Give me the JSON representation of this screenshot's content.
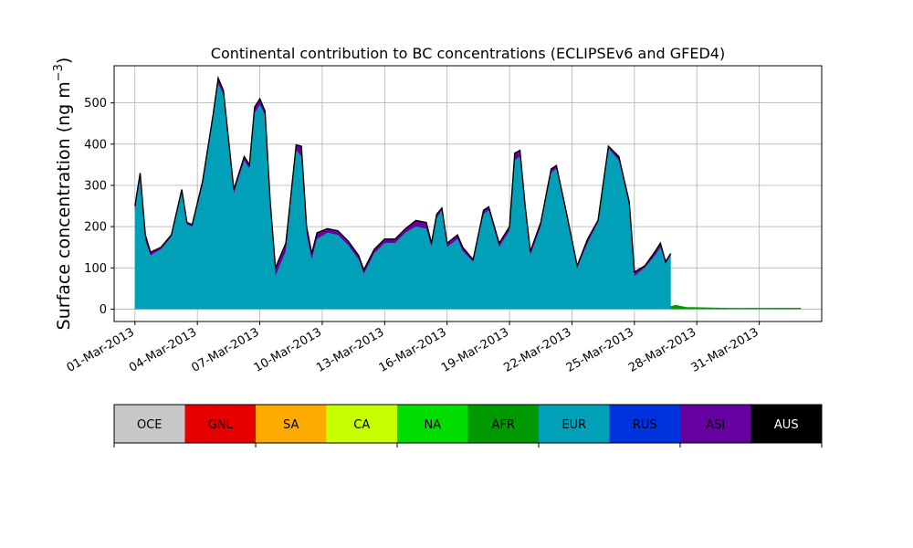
{
  "chart_data": {
    "type": "area",
    "title": "Continental contribution to BC concentrations (ECLIPSEv6 and GFED4)",
    "ylabel": "Surface concentration (ng m",
    "ylabel_exp": "−3",
    "ylabel_close": ")",
    "xlabel": "",
    "xlim": [
      "2013-02-28",
      "2013-04-03"
    ],
    "ylim": [
      -30,
      590
    ],
    "grid": true,
    "x_ticks": [
      "01-Mar-2013",
      "04-Mar-2013",
      "07-Mar-2013",
      "10-Mar-2013",
      "13-Mar-2013",
      "16-Mar-2013",
      "19-Mar-2013",
      "22-Mar-2013",
      "25-Mar-2013",
      "28-Mar-2013",
      "31-Mar-2013"
    ],
    "x_tick_dates": [
      "2013-03-01",
      "2013-03-04",
      "2013-03-07",
      "2013-03-10",
      "2013-03-13",
      "2013-03-16",
      "2013-03-19",
      "2013-03-22",
      "2013-03-25",
      "2013-03-28",
      "2013-03-31"
    ],
    "y_ticks": [
      0,
      100,
      200,
      300,
      400,
      500
    ],
    "series_order": [
      "OCE",
      "GNL",
      "SA",
      "CA",
      "NA",
      "AFR",
      "EUR",
      "RUS",
      "ASI",
      "AUS"
    ],
    "series": [
      {
        "name": "NA",
        "color": "#00dd00",
        "points": [
          [
            "2013-03-01T00:00",
            2
          ],
          [
            "2013-03-03T00:00",
            3
          ],
          [
            "2013-03-05T00:00",
            5
          ],
          [
            "2013-03-06T00:00",
            6
          ],
          [
            "2013-03-07T12:00",
            2
          ],
          [
            "2013-03-09T00:00",
            5
          ],
          [
            "2013-03-12T00:00",
            3
          ],
          [
            "2013-03-14T00:00",
            2
          ],
          [
            "2013-03-17T00:00",
            2
          ],
          [
            "2013-03-20T00:00",
            1
          ],
          [
            "2013-03-22T00:00",
            2
          ],
          [
            "2013-03-23T12:00",
            8
          ],
          [
            "2013-03-24T06:00",
            18
          ],
          [
            "2013-03-24T18:00",
            10
          ],
          [
            "2013-03-26T00:00",
            4
          ],
          [
            "2013-03-30T00:00",
            2
          ],
          [
            "2013-04-02T00:00",
            3
          ]
        ]
      },
      {
        "name": "AFR",
        "color": "#009a00",
        "points": [
          [
            "2013-03-01T00:00",
            18
          ],
          [
            "2013-03-01T12:00",
            30
          ],
          [
            "2013-03-01T18:00",
            65
          ],
          [
            "2013-03-02T06:00",
            55
          ],
          [
            "2013-03-02T18:00",
            57
          ],
          [
            "2013-03-03T06:00",
            53
          ],
          [
            "2013-03-03T18:00",
            60
          ],
          [
            "2013-03-04T00:00",
            52
          ],
          [
            "2013-03-04T12:00",
            40
          ],
          [
            "2013-03-05T00:00",
            23
          ],
          [
            "2013-03-05T12:00",
            24
          ],
          [
            "2013-03-06T00:00",
            18
          ],
          [
            "2013-03-06T12:00",
            30
          ],
          [
            "2013-03-07T00:00",
            16
          ],
          [
            "2013-03-07T12:00",
            20
          ],
          [
            "2013-03-08T00:00",
            20
          ],
          [
            "2013-03-08T12:00",
            18
          ],
          [
            "2013-03-09T00:00",
            22
          ],
          [
            "2013-03-09T12:00",
            45
          ],
          [
            "2013-03-09T18:00",
            40
          ],
          [
            "2013-03-10T06:00",
            25
          ],
          [
            "2013-03-10T18:00",
            14
          ],
          [
            "2013-03-11T12:00",
            10
          ],
          [
            "2013-03-12T12:00",
            9
          ],
          [
            "2013-03-13T12:00",
            8
          ],
          [
            "2013-03-14T12:00",
            6
          ],
          [
            "2013-03-15T12:00",
            5
          ],
          [
            "2013-03-16T12:00",
            5
          ],
          [
            "2013-03-17T12:00",
            4
          ],
          [
            "2013-03-18T12:00",
            4
          ],
          [
            "2013-03-19T12:00",
            3
          ],
          [
            "2013-03-20T12:00",
            3
          ],
          [
            "2013-03-21T12:00",
            3
          ],
          [
            "2013-03-22T12:00",
            4
          ],
          [
            "2013-03-23T12:00",
            9
          ],
          [
            "2013-03-24T06:00",
            20
          ],
          [
            "2013-03-24T18:00",
            12
          ],
          [
            "2013-03-25T12:00",
            6
          ],
          [
            "2013-03-26T12:00",
            5
          ],
          [
            "2013-03-27T00:00",
            10
          ],
          [
            "2013-03-27T12:00",
            5
          ],
          [
            "2013-03-28T12:00",
            4
          ],
          [
            "2013-03-29T12:00",
            3
          ],
          [
            "2013-03-30T12:00",
            3
          ],
          [
            "2013-03-31T12:00",
            3
          ],
          [
            "2013-04-01T12:00",
            3
          ],
          [
            "2013-04-02T00:00",
            3
          ]
        ]
      },
      {
        "name": "EUR",
        "color": "#00a0b8",
        "points": [
          [
            "2013-03-01T00:00",
            235
          ],
          [
            "2013-03-01T06:00",
            320
          ],
          [
            "2013-03-01T12:00",
            165
          ],
          [
            "2013-03-01T18:00",
            130
          ],
          [
            "2013-03-02T06:00",
            145
          ],
          [
            "2013-03-02T18:00",
            175
          ],
          [
            "2013-03-03T06:00",
            285
          ],
          [
            "2013-03-03T12:00",
            205
          ],
          [
            "2013-03-03T18:00",
            200
          ],
          [
            "2013-03-04T06:00",
            300
          ],
          [
            "2013-03-04T18:00",
            460
          ],
          [
            "2013-03-05T00:00",
            545
          ],
          [
            "2013-03-05T06:00",
            520
          ],
          [
            "2013-03-05T18:00",
            280
          ],
          [
            "2013-03-06T06:00",
            360
          ],
          [
            "2013-03-06T12:00",
            340
          ],
          [
            "2013-03-06T18:00",
            475
          ],
          [
            "2013-03-07T00:00",
            495
          ],
          [
            "2013-03-07T06:00",
            470
          ],
          [
            "2013-03-07T12:00",
            250
          ],
          [
            "2013-03-07T18:00",
            80
          ],
          [
            "2013-03-08T06:00",
            140
          ],
          [
            "2013-03-08T18:00",
            385
          ],
          [
            "2013-03-09T00:00",
            370
          ],
          [
            "2013-03-09T06:00",
            180
          ],
          [
            "2013-03-09T12:00",
            120
          ],
          [
            "2013-03-09T18:00",
            170
          ],
          [
            "2013-03-10T06:00",
            185
          ],
          [
            "2013-03-10T18:00",
            180
          ],
          [
            "2013-03-11T06:00",
            155
          ],
          [
            "2013-03-11T18:00",
            120
          ],
          [
            "2013-03-12T00:00",
            85
          ],
          [
            "2013-03-12T12:00",
            135
          ],
          [
            "2013-03-13T00:00",
            160
          ],
          [
            "2013-03-13T12:00",
            160
          ],
          [
            "2013-03-14T00:00",
            185
          ],
          [
            "2013-03-14T12:00",
            200
          ],
          [
            "2013-03-15T00:00",
            195
          ],
          [
            "2013-03-15T06:00",
            150
          ],
          [
            "2013-03-15T12:00",
            220
          ],
          [
            "2013-03-15T18:00",
            240
          ],
          [
            "2013-03-16T00:00",
            150
          ],
          [
            "2013-03-16T12:00",
            170
          ],
          [
            "2013-03-16T18:00",
            140
          ],
          [
            "2013-03-17T06:00",
            115
          ],
          [
            "2013-03-17T18:00",
            230
          ],
          [
            "2013-03-18T00:00",
            240
          ],
          [
            "2013-03-18T12:00",
            150
          ],
          [
            "2013-03-19T00:00",
            190
          ],
          [
            "2013-03-19T06:00",
            360
          ],
          [
            "2013-03-19T12:00",
            370
          ],
          [
            "2013-03-19T18:00",
            240
          ],
          [
            "2013-03-20T00:00",
            130
          ],
          [
            "2013-03-20T12:00",
            200
          ],
          [
            "2013-03-21T00:00",
            330
          ],
          [
            "2013-03-21T06:00",
            340
          ],
          [
            "2013-03-21T18:00",
            220
          ],
          [
            "2013-03-22T06:00",
            100
          ],
          [
            "2013-03-22T18:00",
            160
          ],
          [
            "2013-03-23T06:00",
            210
          ],
          [
            "2013-03-23T18:00",
            390
          ],
          [
            "2013-03-24T06:00",
            360
          ],
          [
            "2013-03-24T18:00",
            250
          ],
          [
            "2013-03-25T00:00",
            80
          ],
          [
            "2013-03-25T12:00",
            100
          ],
          [
            "2013-03-26T00:00",
            130
          ],
          [
            "2013-03-26T06:00",
            150
          ],
          [
            "2013-03-26T12:00",
            110
          ],
          [
            "2013-03-26T18:00",
            130
          ]
        ]
      }
    ],
    "total_outline": [
      [
        "2013-03-01T00:00",
        250
      ],
      [
        "2013-03-01T06:00",
        330
      ],
      [
        "2013-03-01T12:00",
        180
      ],
      [
        "2013-03-01T18:00",
        138
      ],
      [
        "2013-03-02T06:00",
        150
      ],
      [
        "2013-03-02T18:00",
        180
      ],
      [
        "2013-03-03T06:00",
        290
      ],
      [
        "2013-03-03T12:00",
        210
      ],
      [
        "2013-03-03T18:00",
        205
      ],
      [
        "2013-03-04T06:00",
        310
      ],
      [
        "2013-03-04T18:00",
        470
      ],
      [
        "2013-03-05T00:00",
        560
      ],
      [
        "2013-03-05T06:00",
        530
      ],
      [
        "2013-03-05T18:00",
        290
      ],
      [
        "2013-03-06T06:00",
        370
      ],
      [
        "2013-03-06T12:00",
        350
      ],
      [
        "2013-03-06T18:00",
        490
      ],
      [
        "2013-03-07T00:00",
        510
      ],
      [
        "2013-03-07T06:00",
        480
      ],
      [
        "2013-03-07T12:00",
        260
      ],
      [
        "2013-03-07T18:00",
        100
      ],
      [
        "2013-03-08T06:00",
        160
      ],
      [
        "2013-03-08T18:00",
        398
      ],
      [
        "2013-03-09T00:00",
        395
      ],
      [
        "2013-03-09T06:00",
        200
      ],
      [
        "2013-03-09T12:00",
        135
      ],
      [
        "2013-03-09T18:00",
        185
      ],
      [
        "2013-03-10T06:00",
        195
      ],
      [
        "2013-03-10T18:00",
        190
      ],
      [
        "2013-03-11T06:00",
        165
      ],
      [
        "2013-03-11T18:00",
        130
      ],
      [
        "2013-03-12T00:00",
        95
      ],
      [
        "2013-03-12T12:00",
        145
      ],
      [
        "2013-03-13T00:00",
        170
      ],
      [
        "2013-03-13T12:00",
        170
      ],
      [
        "2013-03-14T00:00",
        195
      ],
      [
        "2013-03-14T12:00",
        215
      ],
      [
        "2013-03-15T00:00",
        210
      ],
      [
        "2013-03-15T06:00",
        160
      ],
      [
        "2013-03-15T12:00",
        230
      ],
      [
        "2013-03-15T18:00",
        245
      ],
      [
        "2013-03-16T00:00",
        160
      ],
      [
        "2013-03-16T12:00",
        180
      ],
      [
        "2013-03-16T18:00",
        150
      ],
      [
        "2013-03-17T06:00",
        120
      ],
      [
        "2013-03-17T18:00",
        240
      ],
      [
        "2013-03-18T00:00",
        248
      ],
      [
        "2013-03-18T12:00",
        160
      ],
      [
        "2013-03-19T00:00",
        200
      ],
      [
        "2013-03-19T06:00",
        378
      ],
      [
        "2013-03-19T12:00",
        385
      ],
      [
        "2013-03-19T18:00",
        250
      ],
      [
        "2013-03-20T00:00",
        140
      ],
      [
        "2013-03-20T12:00",
        210
      ],
      [
        "2013-03-21T00:00",
        340
      ],
      [
        "2013-03-21T06:00",
        348
      ],
      [
        "2013-03-21T18:00",
        230
      ],
      [
        "2013-03-22T06:00",
        105
      ],
      [
        "2013-03-22T18:00",
        170
      ],
      [
        "2013-03-23T06:00",
        215
      ],
      [
        "2013-03-23T18:00",
        395
      ],
      [
        "2013-03-24T06:00",
        370
      ],
      [
        "2013-03-24T18:00",
        260
      ],
      [
        "2013-03-25T00:00",
        90
      ],
      [
        "2013-03-25T12:00",
        105
      ],
      [
        "2013-03-26T00:00",
        140
      ],
      [
        "2013-03-26T06:00",
        160
      ],
      [
        "2013-03-26T12:00",
        115
      ],
      [
        "2013-03-26T18:00",
        135
      ]
    ]
  },
  "colorbar": {
    "labels": [
      "OCE",
      "GNL",
      "SA",
      "CA",
      "NA",
      "AFR",
      "EUR",
      "RUS",
      "ASI",
      "AUS"
    ],
    "colors": [
      "#c8c8c8",
      "#e60000",
      "#ffaa00",
      "#c8ff00",
      "#00dd00",
      "#009a00",
      "#00a0b8",
      "#0033dd",
      "#6600a0",
      "#000000"
    ],
    "label_colors": [
      "#000000",
      "#000000",
      "#000000",
      "#000000",
      "#000000",
      "#000000",
      "#000000",
      "#000000",
      "#000000",
      "#ffffff"
    ]
  }
}
